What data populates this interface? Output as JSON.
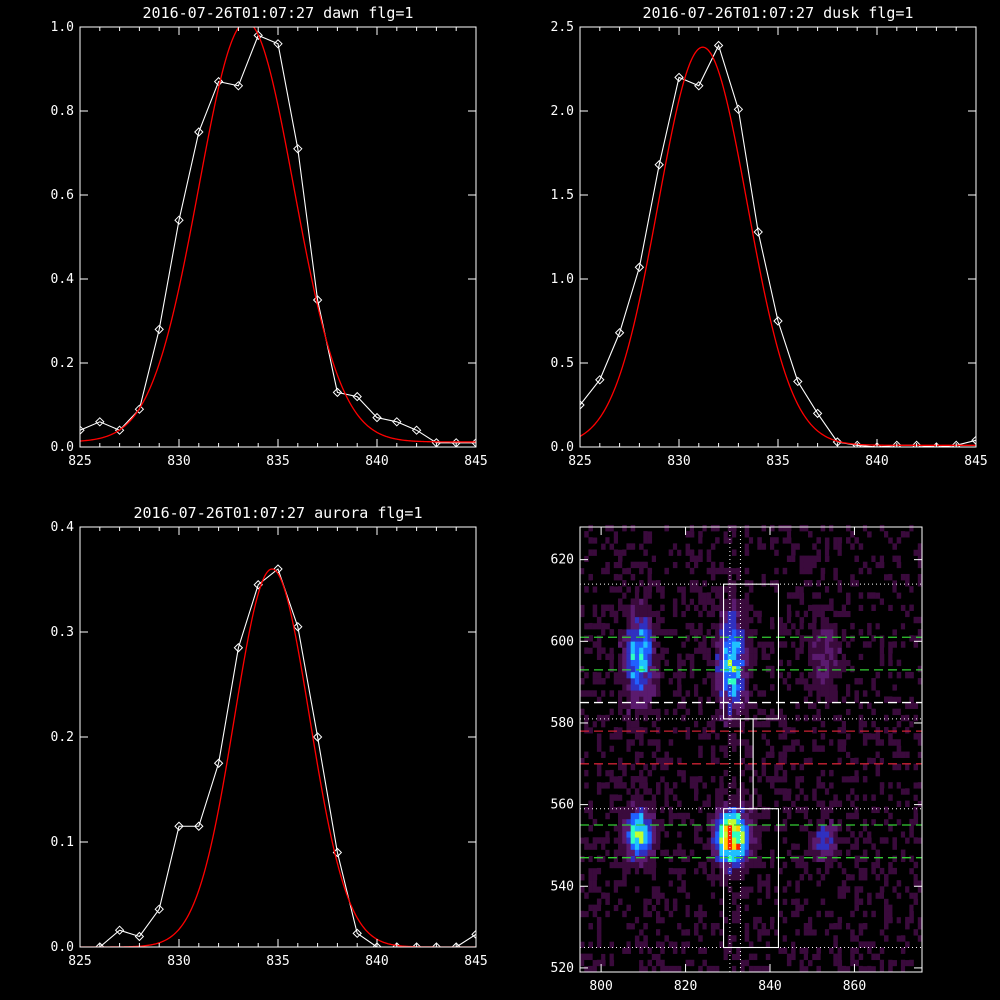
{
  "chart_data": [
    {
      "type": "line",
      "title": "2016-07-26T01:07:27 dawn flg=1",
      "xlim": [
        825,
        845
      ],
      "ylim": [
        0,
        1.0
      ],
      "xticks": [
        "825",
        "830",
        "835",
        "840",
        "845"
      ],
      "yticks": [
        "0.0",
        "0.2",
        "0.4",
        "0.6",
        "0.8",
        "1.0"
      ],
      "grid": false,
      "series": [
        {
          "color": "#ffffff",
          "marker": "diamond",
          "x": [
            825,
            826,
            827,
            828,
            829,
            830,
            831,
            832,
            833,
            834,
            835,
            836,
            837,
            838,
            839,
            840,
            841,
            842,
            843,
            844,
            845
          ],
          "y": [
            0.04,
            0.06,
            0.04,
            0.09,
            0.28,
            0.54,
            0.75,
            0.87,
            0.86,
            0.98,
            0.96,
            0.71,
            0.35,
            0.13,
            0.12,
            0.07,
            0.06,
            0.04,
            0.01,
            0.01,
            0.01
          ]
        },
        {
          "color": "#ff0000",
          "fit": {
            "amp": 1.0,
            "center": 833.4,
            "sigma": 2.4,
            "offset": 0.012
          }
        }
      ]
    },
    {
      "type": "line",
      "title": "2016-07-26T01:07:27 dusk flg=1",
      "xlim": [
        825,
        845
      ],
      "ylim": [
        0,
        2.5
      ],
      "xticks": [
        "825",
        "830",
        "835",
        "840",
        "845"
      ],
      "yticks": [
        "0.0",
        "0.5",
        "1.0",
        "1.5",
        "2.0",
        "2.5"
      ],
      "grid": false,
      "series": [
        {
          "color": "#ffffff",
          "marker": "diamond",
          "x": [
            825,
            826,
            827,
            828,
            829,
            830,
            831,
            832,
            833,
            834,
            835,
            836,
            837,
            838,
            839,
            840,
            841,
            842,
            843,
            844,
            845
          ],
          "y": [
            0.25,
            0.4,
            0.68,
            1.07,
            1.68,
            2.2,
            2.15,
            2.39,
            2.01,
            1.28,
            0.75,
            0.39,
            0.2,
            0.03,
            0.01,
            0.0,
            0.01,
            0.01,
            0.0,
            0.01,
            0.04
          ]
        },
        {
          "color": "#ff0000",
          "fit": {
            "amp": 2.37,
            "center": 831.2,
            "sigma": 2.25,
            "offset": 0.01
          }
        }
      ]
    },
    {
      "type": "line",
      "title": "2016-07-26T01:07:27 aurora flg=1",
      "xlim": [
        825,
        845
      ],
      "ylim": [
        0,
        0.4
      ],
      "xticks": [
        "825",
        "830",
        "835",
        "840",
        "845"
      ],
      "yticks": [
        "0.0",
        "0.1",
        "0.2",
        "0.3",
        "0.4"
      ],
      "grid": false,
      "series": [
        {
          "color": "#ffffff",
          "marker": "diamond",
          "x": [
            826,
            827,
            828,
            829,
            830,
            831,
            832,
            833,
            834,
            835,
            836,
            837,
            838,
            839,
            840,
            841,
            842,
            843,
            844,
            845
          ],
          "y": [
            0.0,
            0.016,
            0.01,
            0.036,
            0.115,
            0.115,
            0.175,
            0.285,
            0.345,
            0.36,
            0.305,
            0.2,
            0.09,
            0.013,
            0.0,
            0.0,
            0.0,
            0.0,
            0.0,
            0.012
          ]
        },
        {
          "color": "#ff0000",
          "fit": {
            "amp": 0.36,
            "center": 834.7,
            "sigma": 1.9,
            "offset": 0.0
          }
        }
      ]
    },
    {
      "type": "heatmap",
      "title": "",
      "xlim": [
        795,
        876
      ],
      "ylim": [
        519,
        628
      ],
      "xticks": [
        "800",
        "820",
        "840",
        "860"
      ],
      "yticks": [
        "520",
        "540",
        "560",
        "580",
        "600",
        "620"
      ],
      "colormap": [
        "#000000",
        "#3a0a3c",
        "#5a1a6e",
        "#3030c0",
        "#2060ff",
        "#20c0ff",
        "#30ffc0",
        "#c0ff30",
        "#ffd000",
        "#ff2000"
      ],
      "blobs": [
        {
          "x": 809,
          "y": 596,
          "sx": 2.2,
          "sy": 7,
          "amp": 0.55
        },
        {
          "x": 831,
          "y": 595,
          "sx": 2.2,
          "sy": 8,
          "amp": 0.6
        },
        {
          "x": 809,
          "y": 553,
          "sx": 2.2,
          "sy": 4,
          "amp": 0.7
        },
        {
          "x": 831,
          "y": 552,
          "sx": 2.5,
          "sy": 4.5,
          "amp": 1.0
        },
        {
          "x": 853,
          "y": 551,
          "sx": 2,
          "sy": 3,
          "amp": 0.32
        },
        {
          "x": 853,
          "y": 597,
          "sx": 2.5,
          "sy": 6,
          "amp": 0.2
        }
      ],
      "boxes": [
        {
          "x0": 829,
          "x1": 842,
          "y0": 581,
          "y1": 614
        },
        {
          "x0": 829,
          "x1": 842,
          "y0": 525,
          "y1": 559
        },
        {
          "x0": 833,
          "x1": 836,
          "y0": 559,
          "y1": 581
        }
      ],
      "dotted_h": [
        614,
        581,
        559,
        525
      ],
      "dotted_v": [
        830.5,
        833
      ],
      "dashed_h": [
        {
          "y": 601,
          "color": "#33cc33"
        },
        {
          "y": 593,
          "color": "#33cc33"
        },
        {
          "y": 585,
          "color": "#ffffff"
        },
        {
          "y": 578,
          "color": "#cc2233"
        },
        {
          "y": 570,
          "color": "#cc2233"
        },
        {
          "y": 555,
          "color": "#33cc33"
        },
        {
          "y": 547,
          "color": "#33cc33"
        }
      ]
    }
  ]
}
